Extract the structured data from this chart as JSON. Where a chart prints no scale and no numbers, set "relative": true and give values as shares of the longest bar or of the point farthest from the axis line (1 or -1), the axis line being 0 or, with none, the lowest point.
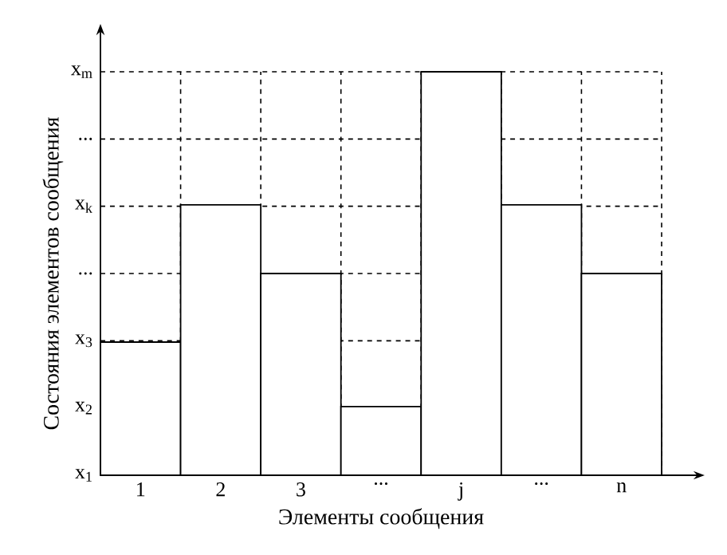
{
  "chart_data": {
    "type": "bar",
    "relative": true,
    "xlabel": "Элементы сообщения",
    "ylabel": "Состояния элементов сообщения",
    "categories": [
      "1",
      "2",
      "3",
      "...",
      "j",
      "...",
      "n"
    ],
    "values": [
      0.33,
      0.67,
      0.5,
      0.17,
      1,
      0.67,
      0.5
    ],
    "color": "#000000",
    "annotations": [
      "x$_{1}$",
      "x$_{2}$",
      "x$_{3}$",
      "...",
      "x$_{k}$",
      "...",
      "x$_{m}$"
    ],
    "grid": true
  }
}
